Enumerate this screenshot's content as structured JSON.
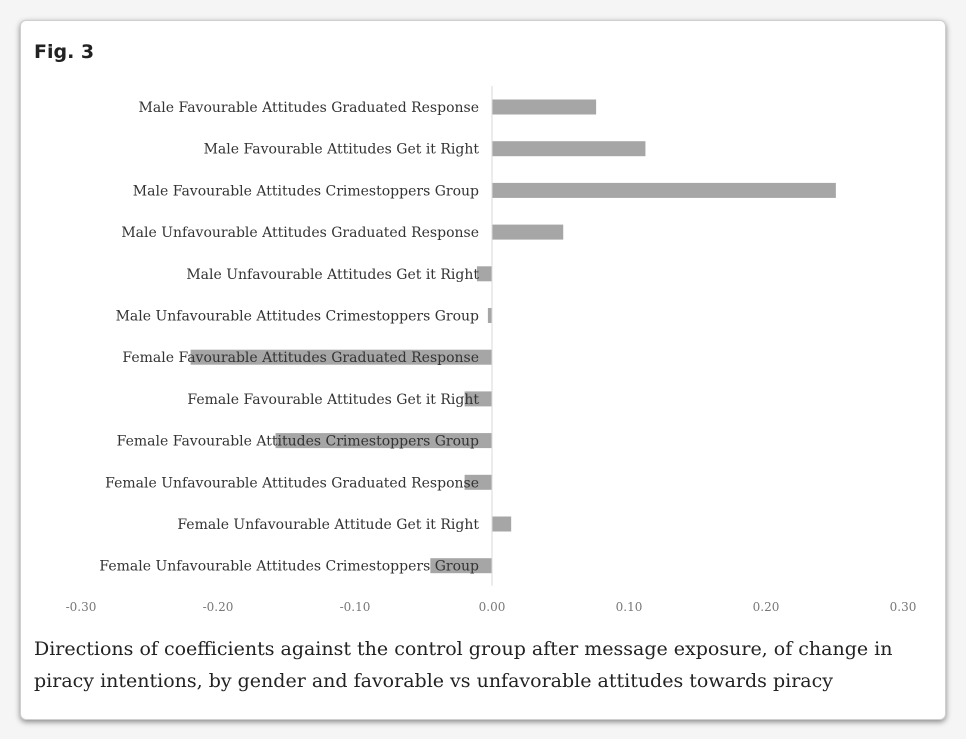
{
  "figure": {
    "label": "Fig. 3",
    "caption": "Directions of coefficients against the control group after message exposure, of change in piracy intentions, by gender and favorable vs unfavorable attitudes towards piracy"
  },
  "colors": {
    "bar": "#a6a6a6",
    "axis": "#d9d9d9"
  },
  "chart_data": {
    "type": "bar",
    "orientation": "horizontal",
    "categories": [
      "Male Favourable Attitudes Graduated Response",
      "Male Favourable Attitudes Get it Right",
      "Male Favourable Attitudes Crimestoppers Group",
      "Male Unfavourable Attitudes Graduated Response",
      "Male Unfavourable Attitudes Get it Right",
      "Male Unfavourable Attitudes Crimestoppers Group",
      "Female Favourable Attitudes Graduated Response",
      "Female Favourable Attitudes Get it Right",
      "Female Favourable Attitudes Crimestoppers Group",
      "Female Unfavourable Attitudes Graduated Response",
      "Female Unfavourable Attitude Get it Right",
      "Female Unfavourable Attitudes Crimestoppers Group"
    ],
    "values": [
      0.076,
      0.112,
      0.251,
      0.052,
      -0.011,
      -0.003,
      -0.22,
      -0.02,
      -0.158,
      -0.02,
      0.014,
      -0.045
    ],
    "xlim": [
      -0.3,
      0.3
    ],
    "xticks": [
      "-0.30",
      "-0.20",
      "-0.10",
      "0.00",
      "0.10",
      "0.20",
      "0.30"
    ],
    "xtick_values": [
      -0.3,
      -0.2,
      -0.1,
      0.0,
      0.1,
      0.2,
      0.3
    ],
    "title": "",
    "xlabel": "",
    "ylabel": "",
    "grid": false,
    "legend": "none"
  }
}
